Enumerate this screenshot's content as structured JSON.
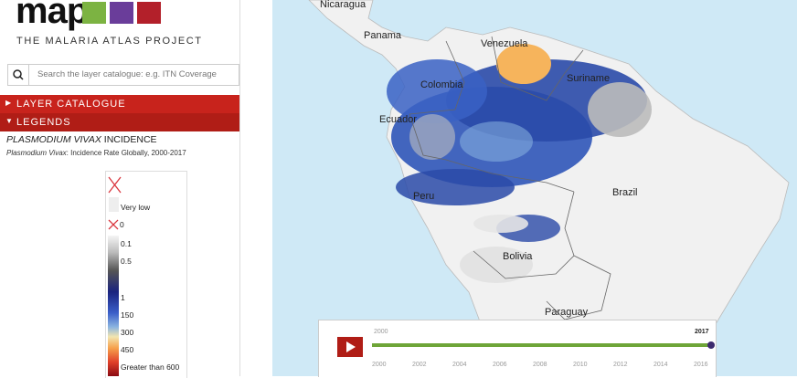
{
  "header": {
    "logo": "map",
    "subtitle": "THE MALARIA ATLAS PROJECT"
  },
  "search": {
    "placeholder": "Search the layer catalogue: e.g. ITN Coverage"
  },
  "menu": [
    "LAYER CATALOGUE",
    "LEGENDS"
  ],
  "layer": {
    "title": [
      "PLASMODIUM VIVAX",
      " INCIDENCE"
    ],
    "subtitle": [
      "Plasmodium Vivax",
      ": Incidence Rate Globally, 2000-2017"
    ]
  },
  "legend": {
    "labels": [
      "Very low",
      "0",
      "0.1",
      "0.5",
      "1",
      "150",
      "300",
      "450",
      "Greater than 600"
    ]
  },
  "map": {
    "labels": [
      "Nicaragua",
      "Panama",
      "Venezuela",
      "Colombia",
      "Suriname",
      "Ecuador",
      "Brazil",
      "Peru",
      "Bolivia",
      "Paraguay"
    ]
  },
  "timeline": {
    "start": "2000",
    "end": "2017",
    "ticks": [
      "2000",
      "2002",
      "2004",
      "2006",
      "2008",
      "2010",
      "2012",
      "2014",
      "2016"
    ]
  }
}
